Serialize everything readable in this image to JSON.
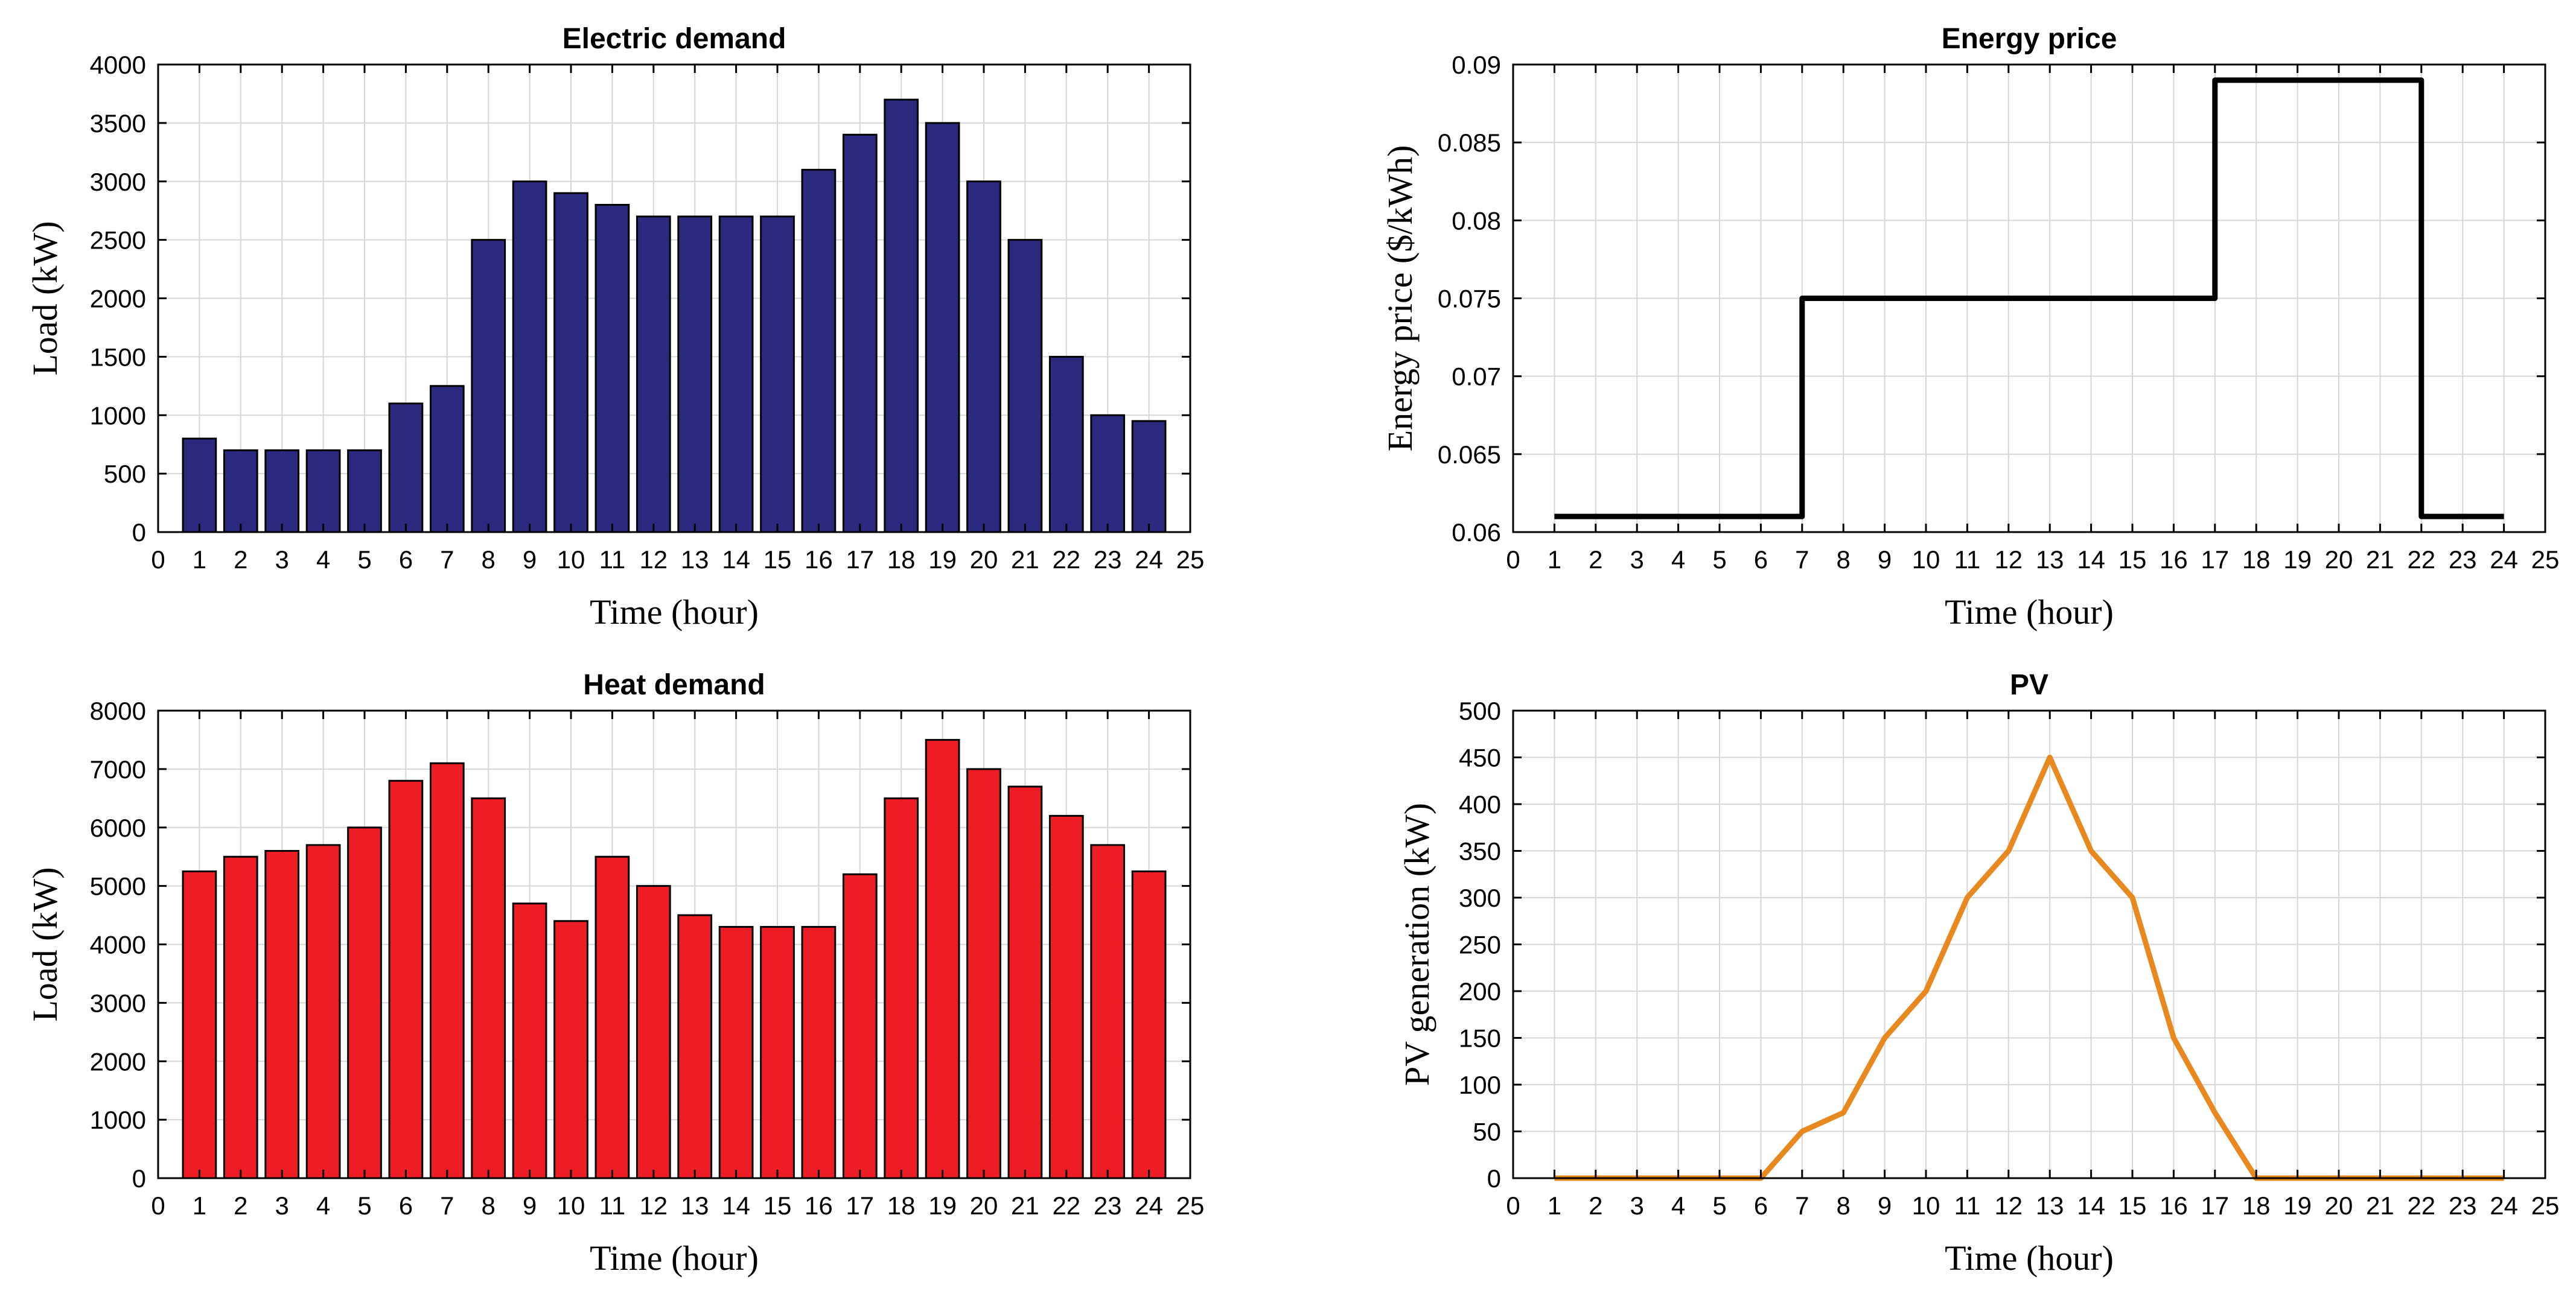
{
  "chart_data": [
    {
      "id": "electric",
      "type": "bar",
      "title": "Electric demand",
      "xlabel": "Time (hour)",
      "ylabel": "Load (kW)",
      "x": [
        1,
        2,
        3,
        4,
        5,
        6,
        7,
        8,
        9,
        10,
        11,
        12,
        13,
        14,
        15,
        16,
        17,
        18,
        19,
        20,
        21,
        22,
        23,
        24
      ],
      "values": [
        800,
        700,
        700,
        700,
        700,
        1100,
        1250,
        2500,
        3000,
        2900,
        2800,
        2700,
        2700,
        2700,
        2700,
        3100,
        3400,
        3700,
        3500,
        3000,
        2500,
        1500,
        1000,
        950
      ],
      "xlim": [
        0,
        25
      ],
      "ylim": [
        0,
        4000
      ],
      "xticks": [
        0,
        1,
        2,
        3,
        4,
        5,
        6,
        7,
        8,
        9,
        10,
        11,
        12,
        13,
        14,
        15,
        16,
        17,
        18,
        19,
        20,
        21,
        22,
        23,
        24,
        25
      ],
      "yticks": [
        0,
        500,
        1000,
        1500,
        2000,
        2500,
        3000,
        3500,
        4000
      ],
      "ytick_labels": [
        "0",
        "500",
        "1000",
        "1500",
        "2000",
        "2500",
        "3000",
        "3500",
        "4000"
      ],
      "color": "#2b2a7f",
      "grid": true
    },
    {
      "id": "price",
      "type": "line",
      "step": true,
      "title": "Energy price",
      "xlabel": "Time (hour)",
      "ylabel": "Energy price ($/kWh)",
      "x": [
        1,
        7,
        7,
        17,
        17,
        22,
        22,
        24
      ],
      "values": [
        0.061,
        0.061,
        0.075,
        0.075,
        0.089,
        0.089,
        0.061,
        0.061
      ],
      "xlim": [
        0,
        25
      ],
      "ylim": [
        0.06,
        0.09
      ],
      "xticks": [
        0,
        1,
        2,
        3,
        4,
        5,
        6,
        7,
        8,
        9,
        10,
        11,
        12,
        13,
        14,
        15,
        16,
        17,
        18,
        19,
        20,
        21,
        22,
        23,
        24,
        25
      ],
      "yticks": [
        0.06,
        0.065,
        0.07,
        0.075,
        0.08,
        0.085,
        0.09
      ],
      "ytick_labels": [
        "0.06",
        "0.065",
        "0.07",
        "0.075",
        "0.08",
        "0.085",
        "0.09"
      ],
      "color": "#000000",
      "grid": true
    },
    {
      "id": "heat",
      "type": "bar",
      "title": "Heat demand",
      "xlabel": "Time (hour)",
      "ylabel": "Load (kW)",
      "x": [
        1,
        2,
        3,
        4,
        5,
        6,
        7,
        8,
        9,
        10,
        11,
        12,
        13,
        14,
        15,
        16,
        17,
        18,
        19,
        20,
        21,
        22,
        23,
        24
      ],
      "values": [
        5250,
        5500,
        5600,
        5700,
        6000,
        6800,
        7100,
        6500,
        4700,
        4400,
        5500,
        5000,
        4500,
        4300,
        4300,
        4300,
        5200,
        6500,
        7500,
        7000,
        6700,
        6200,
        5700,
        5250
      ],
      "xlim": [
        0,
        25
      ],
      "ylim": [
        0,
        8000
      ],
      "xticks": [
        0,
        1,
        2,
        3,
        4,
        5,
        6,
        7,
        8,
        9,
        10,
        11,
        12,
        13,
        14,
        15,
        16,
        17,
        18,
        19,
        20,
        21,
        22,
        23,
        24,
        25
      ],
      "yticks": [
        0,
        1000,
        2000,
        3000,
        4000,
        5000,
        6000,
        7000,
        8000
      ],
      "ytick_labels": [
        "0",
        "1000",
        "2000",
        "3000",
        "4000",
        "5000",
        "6000",
        "7000",
        "8000"
      ],
      "color": "#ee1c24",
      "grid": true
    },
    {
      "id": "pv",
      "type": "line",
      "title": "PV",
      "xlabel": "Time (hour)",
      "ylabel": "PV generation (kW)",
      "x": [
        1,
        2,
        3,
        4,
        5,
        6,
        7,
        8,
        9,
        10,
        11,
        12,
        13,
        14,
        15,
        16,
        17,
        18,
        19,
        20,
        21,
        22,
        23,
        24
      ],
      "values": [
        0,
        0,
        0,
        0,
        0,
        0,
        50,
        70,
        150,
        200,
        300,
        350,
        450,
        350,
        300,
        150,
        70,
        0,
        0,
        0,
        0,
        0,
        0,
        0
      ],
      "xlim": [
        0,
        25
      ],
      "ylim": [
        0,
        500
      ],
      "xticks": [
        0,
        1,
        2,
        3,
        4,
        5,
        6,
        7,
        8,
        9,
        10,
        11,
        12,
        13,
        14,
        15,
        16,
        17,
        18,
        19,
        20,
        21,
        22,
        23,
        24,
        25
      ],
      "yticks": [
        0,
        50,
        100,
        150,
        200,
        250,
        300,
        350,
        400,
        450,
        500
      ],
      "ytick_labels": [
        "0",
        "50",
        "100",
        "150",
        "200",
        "250",
        "300",
        "350",
        "400",
        "450",
        "500"
      ],
      "color": "#e8891f",
      "grid": true
    }
  ]
}
